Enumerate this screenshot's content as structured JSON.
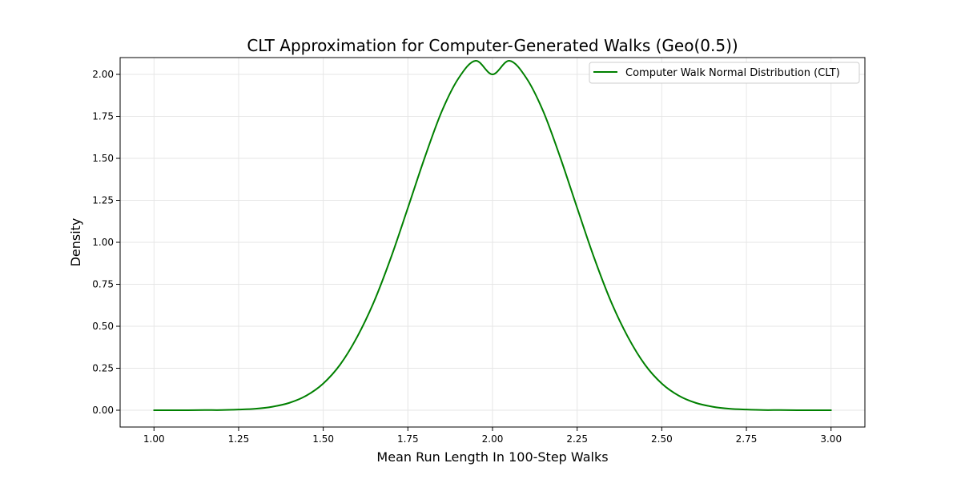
{
  "colors": {
    "series": "#008000",
    "grid": "#e6e6e6",
    "axis": "#000000",
    "background": "#ffffff"
  },
  "chart_data": {
    "type": "line",
    "title": "CLT Approximation for Computer-Generated Walks (Geo(0.5))",
    "xlabel": "Mean Run Length In 100-Step Walks",
    "ylabel": "Density",
    "xlim": [
      0.9,
      3.1
    ],
    "ylim": [
      -0.1,
      2.1
    ],
    "x_ticks": [
      "1.00",
      "1.25",
      "1.50",
      "1.75",
      "2.00",
      "2.25",
      "2.50",
      "2.75",
      "3.00"
    ],
    "y_ticks": [
      "0.00",
      "0.25",
      "0.50",
      "0.75",
      "1.00",
      "1.25",
      "1.50",
      "1.75",
      "2.00"
    ],
    "grid": true,
    "legend_position": "upper right",
    "series": [
      {
        "name": "Computer Walk Normal Distribution (CLT)",
        "color": "#008000",
        "x": [
          1.0,
          1.05,
          1.1,
          1.15,
          1.2,
          1.25,
          1.3,
          1.35,
          1.4,
          1.45,
          1.5,
          1.55,
          1.6,
          1.65,
          1.7,
          1.75,
          1.8,
          1.85,
          1.9,
          1.95,
          2.0,
          2.05,
          2.1,
          2.15,
          2.2,
          2.25,
          2.3,
          2.35,
          2.4,
          2.45,
          2.5,
          2.55,
          2.6,
          2.65,
          2.7,
          2.75,
          2.8,
          2.85,
          2.9,
          2.95,
          3.0
        ],
        "y": [
          0.0,
          0.0,
          0.0,
          0.001,
          0.001,
          0.004,
          0.009,
          0.021,
          0.044,
          0.087,
          0.159,
          0.272,
          0.436,
          0.647,
          0.909,
          1.205,
          1.506,
          1.779,
          1.978,
          2.081,
          2.0,
          2.081,
          1.978,
          1.779,
          1.506,
          1.205,
          0.909,
          0.647,
          0.436,
          0.272,
          0.159,
          0.087,
          0.044,
          0.021,
          0.009,
          0.004,
          0.001,
          0.001,
          0.0,
          0.0,
          0.0
        ]
      }
    ]
  }
}
